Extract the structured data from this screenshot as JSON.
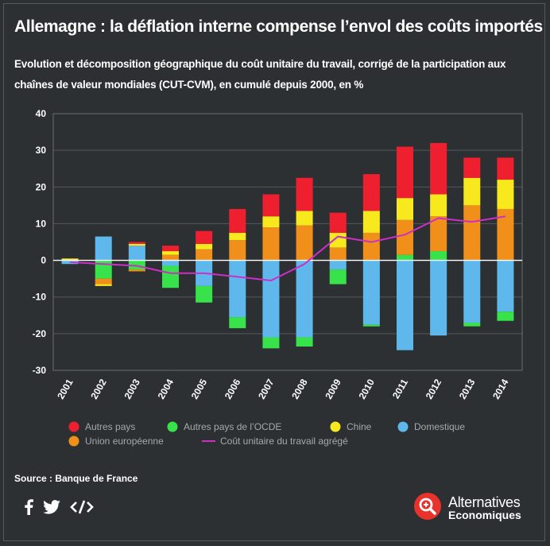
{
  "header": {
    "title": "Allemagne : la déflation interne compense l’envol des coûts importés",
    "subtitle": "Evolution et décomposition géographique du coût unitaire du travail, corrigé de la participation aux chaînes de valeur mondiales (CUT-CVM), en cumulé depuis 2000, en %"
  },
  "chart_data": {
    "type": "bar",
    "stacked": true,
    "categories": [
      "2001",
      "2002",
      "2003",
      "2004",
      "2005",
      "2006",
      "2007",
      "2008",
      "2009",
      "2010",
      "2011",
      "2012",
      "2013",
      "2014"
    ],
    "ylim": [
      -30,
      40
    ],
    "yticks": [
      40,
      30,
      20,
      10,
      0,
      -10,
      -20,
      -30
    ],
    "grid": true,
    "series": [
      {
        "name": "Domestique",
        "color": "#5fb8ec",
        "values": [
          -1,
          6.5,
          4,
          -1.5,
          -7,
          -15.5,
          -21,
          -21,
          -2.5,
          -17.5,
          -24.5,
          -20.5,
          -17,
          -14
        ]
      },
      {
        "name": "Autres pays de l’OCDE",
        "color": "#38e24a",
        "values": [
          0,
          -5,
          -2.5,
          -6,
          -4.5,
          -3,
          -3,
          -2.5,
          -4,
          -0.5,
          1.5,
          2.5,
          -1,
          -2.5
        ]
      },
      {
        "name": "Union européenne",
        "color": "#f0901a",
        "values": [
          0,
          -1.5,
          -0.5,
          1.5,
          3,
          5.5,
          9,
          9.5,
          3.5,
          7.5,
          9.5,
          9.5,
          15,
          14
        ]
      },
      {
        "name": "Chine",
        "color": "#f8e81e",
        "values": [
          0.5,
          -0.5,
          0.5,
          1,
          1.5,
          2,
          3,
          4,
          4,
          6,
          6,
          6,
          7.5,
          8
        ]
      },
      {
        "name": "Autres pays",
        "color": "#ee2030",
        "values": [
          0,
          0,
          0.5,
          1.5,
          3.5,
          6.5,
          6,
          9,
          5.5,
          10,
          14,
          14,
          5.5,
          6
        ]
      }
    ],
    "line": {
      "name": "Coût unitaire du travail agrégé",
      "color": "#cc2ec8",
      "values": [
        -0.5,
        -1,
        -1.5,
        -3.5,
        -3.5,
        -4.5,
        -5.5,
        -1,
        6.5,
        5,
        7,
        11.5,
        10.5,
        12
      ]
    },
    "legend": {
      "position": "bottom",
      "items": [
        "Autres pays",
        "Autres pays de l’OCDE",
        "Chine",
        "Domestique",
        "Union européenne",
        "Coût unitaire du travail agrégé"
      ]
    }
  },
  "footer": {
    "source": "Source : Banque de France",
    "social_icons": [
      "facebook-icon",
      "twitter-icon",
      "embed-code-icon"
    ],
    "brand_line1": "Alternatives",
    "brand_line2": "Economiques",
    "brand_color": "#e8322b"
  }
}
